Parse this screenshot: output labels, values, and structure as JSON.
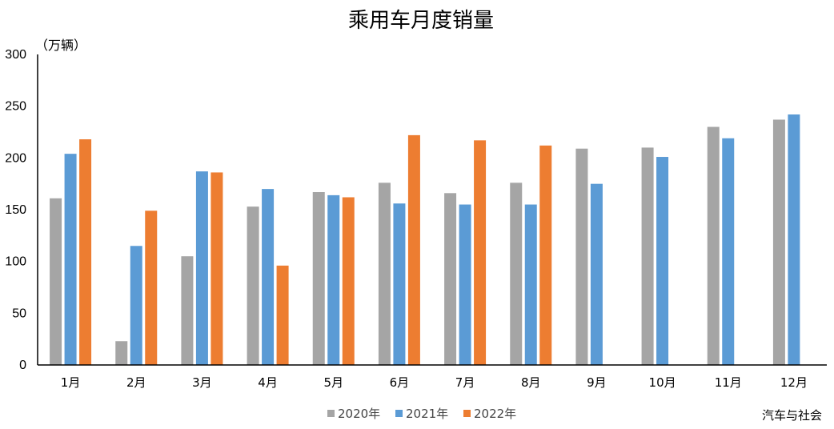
{
  "chart_data": {
    "type": "bar",
    "title": "乘用车月度销量",
    "unit_label": "（万辆）",
    "categories": [
      "1月",
      "2月",
      "3月",
      "4月",
      "5月",
      "6月",
      "7月",
      "8月",
      "9月",
      "10月",
      "11月",
      "12月"
    ],
    "ylim": [
      0,
      300
    ],
    "yticks": [
      0,
      50,
      100,
      150,
      200,
      250,
      300
    ],
    "grid": false,
    "legend_position": "bottom",
    "series": [
      {
        "name": "2020年",
        "color": "#a5a5a5",
        "values": [
          161,
          23,
          105,
          153,
          167,
          176,
          166,
          176,
          209,
          210,
          230,
          237
        ]
      },
      {
        "name": "2021年",
        "color": "#5b9bd5",
        "values": [
          204,
          115,
          187,
          170,
          164,
          156,
          155,
          155,
          175,
          201,
          219,
          242
        ]
      },
      {
        "name": "2022年",
        "color": "#ed7d31",
        "values": [
          218,
          149,
          186,
          96,
          162,
          222,
          217,
          212,
          null,
          null,
          null,
          null
        ]
      }
    ],
    "source": "汽车与社会"
  }
}
